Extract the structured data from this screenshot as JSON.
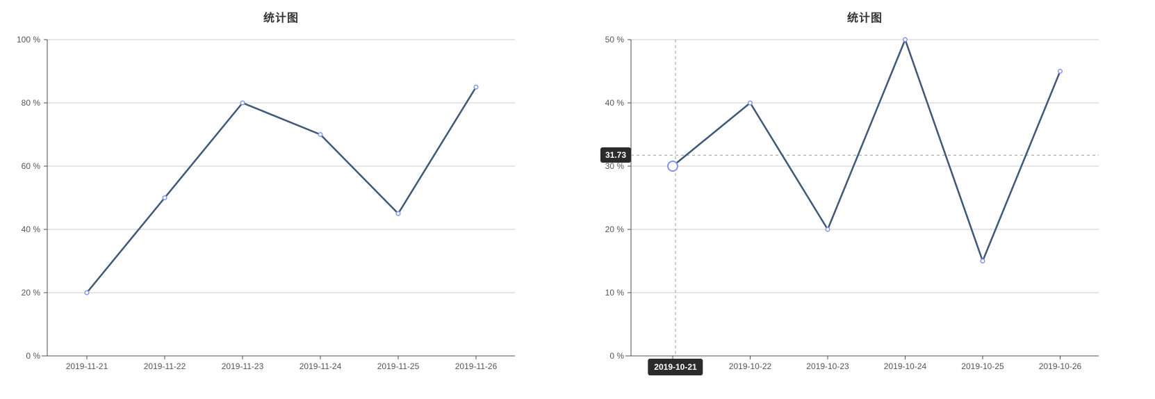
{
  "chart_data": [
    {
      "type": "line",
      "title": "统计图",
      "categories": [
        "2019-11-21",
        "2019-11-22",
        "2019-11-23",
        "2019-11-24",
        "2019-11-25",
        "2019-11-26"
      ],
      "values": [
        20,
        50,
        80,
        70,
        45,
        85
      ],
      "xlabel": "",
      "ylabel": "",
      "ylim": [
        0,
        100
      ],
      "ytick_step": 20,
      "ytick_suffix": " %",
      "grid": "horizontal",
      "legend": "none",
      "colors": {
        "line": "#3e5876",
        "marker_stroke": "#8694ee",
        "marker_fill": "#ffffff",
        "grid": "#cccccc",
        "axis": "#4d4d4d",
        "tick_label": "#555555",
        "title": "#333333"
      }
    },
    {
      "type": "line",
      "title": "统计图",
      "categories": [
        "2019-10-21",
        "2019-10-22",
        "2019-10-23",
        "2019-10-24",
        "2019-10-25",
        "2019-10-26"
      ],
      "values": [
        30,
        40,
        20,
        50,
        15,
        45
      ],
      "xlabel": "",
      "ylabel": "",
      "ylim": [
        0,
        50
      ],
      "ytick_step": 10,
      "ytick_suffix": " %",
      "grid": "horizontal",
      "legend": "none",
      "colors": {
        "line": "#3e5876",
        "marker_stroke": "#8694ee",
        "marker_fill": "#ffffff",
        "grid": "#cccccc",
        "axis": "#4d4d4d",
        "tick_label": "#555555",
        "title": "#333333"
      },
      "crosshair": {
        "hovered_x_index": 0,
        "y_value": 31.73,
        "y_tooltip_text": "31.73",
        "x_tooltip_text": "2019-10-21",
        "line_color": "#999999",
        "tooltip_bg": "#2b2b2b",
        "tooltip_text_color": "#ffffff"
      }
    }
  ]
}
